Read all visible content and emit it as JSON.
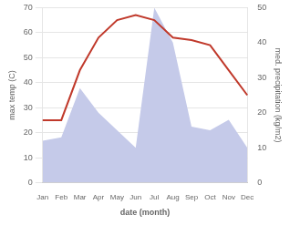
{
  "chart_data": {
    "type": "line",
    "categories": [
      "Jan",
      "Feb",
      "Mar",
      "Apr",
      "May",
      "Jun",
      "Jul",
      "Aug",
      "Sep",
      "Oct",
      "Nov",
      "Dec"
    ],
    "series": [
      {
        "type": "area",
        "color": "#c5cae9",
        "axis": "y2",
        "values": [
          12,
          13,
          27,
          20,
          15,
          10,
          50,
          40,
          16,
          15,
          18,
          10
        ]
      },
      {
        "type": "line",
        "color": "#c0392b",
        "values": [
          25,
          25,
          45,
          58,
          65,
          67,
          65,
          58,
          57,
          55,
          45,
          35
        ]
      }
    ],
    "xlabel": "date (month)",
    "ylabel": "max temp (C)",
    "y2label": "med. precipitation (kg/m2)",
    "ylim": [
      0,
      70
    ],
    "yticks": [
      0,
      10,
      20,
      30,
      40,
      50,
      60,
      70
    ],
    "y2lim": [
      0,
      50
    ],
    "y2ticks": [
      0,
      10,
      20,
      30,
      40,
      50
    ],
    "grid": true
  }
}
